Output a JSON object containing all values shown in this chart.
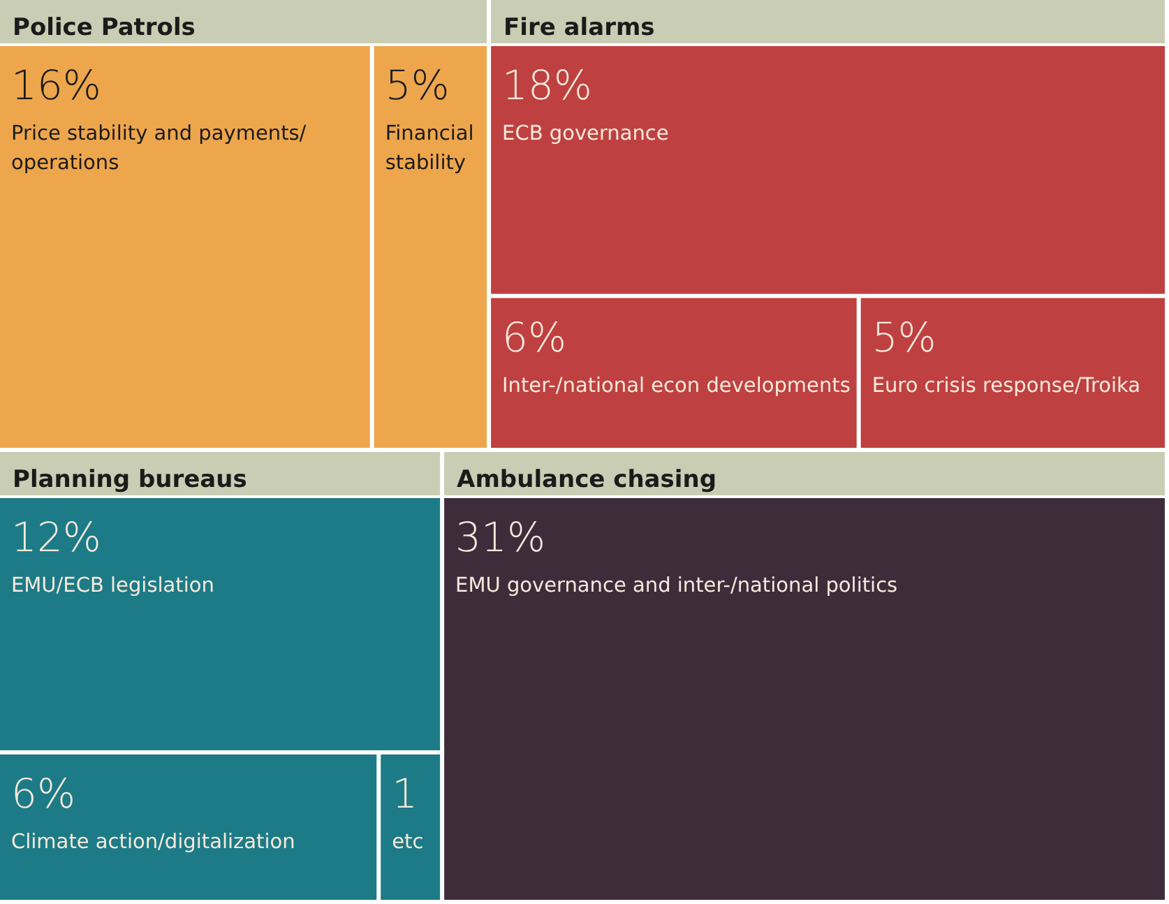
{
  "chart_data": {
    "type": "other",
    "annotations": [
      "Police Patrols",
      "Fire alarms",
      "Planning bureaus",
      "Ambulance chasing"
    ],
    "categories": [
      "Price stability and payments/ operations",
      "Financial stability",
      "ECB governance",
      "Inter-/national econ developments",
      "Euro crisis response/Troika",
      "EMU/ECB legislation",
      "Climate action/digitalization",
      "etc",
      "EMU governance and inter-/national politics"
    ],
    "values": [
      16,
      5,
      18,
      6,
      5,
      12,
      6,
      1,
      31
    ],
    "value_labels": [
      "16%",
      "5%",
      "18%",
      "6%",
      "5%",
      "12%",
      "6%",
      "1",
      "31%"
    ],
    "colors": [
      "#eea64c",
      "#eea64c",
      "#bf4040",
      "#bf4040",
      "#bf4040",
      "#1c7b86",
      "#1c7b86",
      "#1c7b86",
      "#3e2c3b"
    ]
  }
}
